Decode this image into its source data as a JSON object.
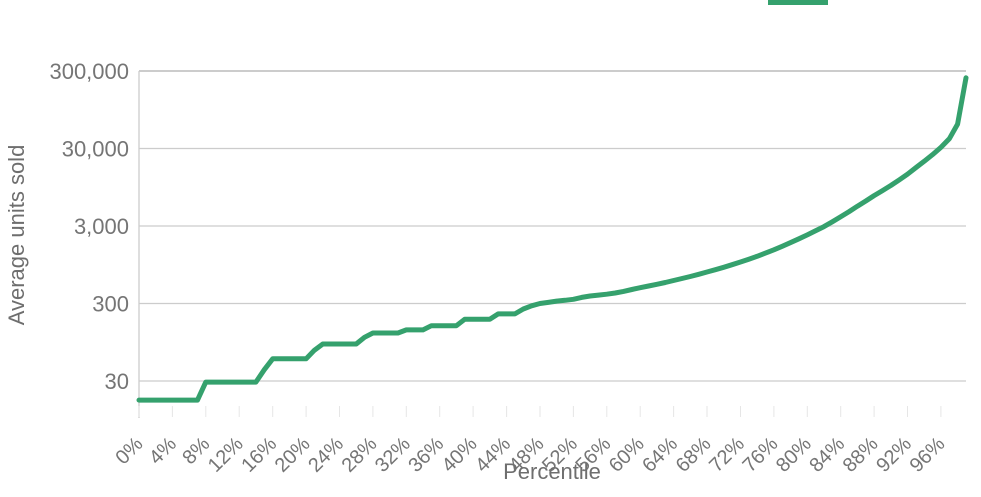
{
  "colors": {
    "series_green": "#35a16d",
    "gridline": "#cccccc",
    "gridline_top": "#aeaeae",
    "tick_text": "#757575",
    "axis_title_text": "#6e6e6e"
  },
  "legend": {
    "position": "top",
    "note": "only bottom sliver of green line swatch visible at top edge",
    "swatch_color": "#35a16d"
  },
  "chart_data": {
    "type": "line",
    "title": "",
    "xlabel": "Percentile",
    "ylabel": "Average units sold",
    "grid": true,
    "x_axis": {
      "unit": "percentile",
      "range": [
        0,
        99
      ],
      "tick_labels": [
        "0%",
        "4%",
        "8%",
        "12%",
        "16%",
        "20%",
        "24%",
        "28%",
        "32%",
        "36%",
        "40%",
        "44%",
        "48%",
        "52%",
        "56%",
        "60%",
        "64%",
        "68%",
        "72%",
        "76%",
        "80%",
        "84%",
        "88%",
        "92%",
        "96%"
      ],
      "tick_values": [
        0,
        4,
        8,
        12,
        16,
        20,
        24,
        28,
        32,
        36,
        40,
        44,
        48,
        52,
        56,
        60,
        64,
        68,
        72,
        76,
        80,
        84,
        88,
        92,
        96
      ],
      "tick_label_rotation_deg": -45
    },
    "y_axis": {
      "scale": "log",
      "range": [
        10,
        300000
      ],
      "tick_labels": [
        "30",
        "300",
        "3,000",
        "30,000",
        "300,000"
      ],
      "tick_values": [
        30,
        300,
        3000,
        30000,
        300000
      ]
    },
    "series": [
      {
        "color": "#35a16d",
        "x": [
          0,
          1,
          2,
          3,
          4,
          5,
          6,
          7,
          8,
          9,
          10,
          11,
          12,
          13,
          14,
          15,
          16,
          17,
          18,
          19,
          20,
          21,
          22,
          23,
          24,
          25,
          26,
          27,
          28,
          29,
          30,
          31,
          32,
          33,
          34,
          35,
          36,
          37,
          38,
          39,
          40,
          41,
          42,
          43,
          44,
          45,
          46,
          47,
          48,
          49,
          50,
          51,
          52,
          53,
          54,
          55,
          56,
          57,
          58,
          59,
          60,
          61,
          62,
          63,
          64,
          65,
          66,
          67,
          68,
          69,
          70,
          71,
          72,
          73,
          74,
          75,
          76,
          77,
          78,
          79,
          80,
          81,
          82,
          83,
          84,
          85,
          86,
          87,
          88,
          89,
          90,
          91,
          92,
          93,
          94,
          95,
          96,
          97,
          98,
          99
        ],
        "values": [
          17,
          17,
          17,
          17,
          17,
          17,
          17,
          17,
          29,
          29,
          29,
          29,
          29,
          29,
          29,
          42,
          58,
          58,
          58,
          58,
          58,
          75,
          90,
          90,
          90,
          90,
          90,
          110,
          125,
          125,
          125,
          125,
          137,
          137,
          137,
          155,
          155,
          155,
          155,
          188,
          188,
          188,
          188,
          220,
          220,
          220,
          255,
          280,
          300,
          310,
          322,
          330,
          340,
          360,
          375,
          385,
          395,
          410,
          430,
          455,
          480,
          505,
          530,
          560,
          595,
          630,
          670,
          715,
          765,
          820,
          880,
          950,
          1030,
          1120,
          1220,
          1340,
          1480,
          1640,
          1830,
          2050,
          2300,
          2600,
          2950,
          3400,
          3950,
          4600,
          5400,
          6300,
          7400,
          8600,
          10000,
          11800,
          14000,
          17000,
          20500,
          25000,
          31000,
          40000,
          62000,
          245000
        ]
      }
    ]
  }
}
